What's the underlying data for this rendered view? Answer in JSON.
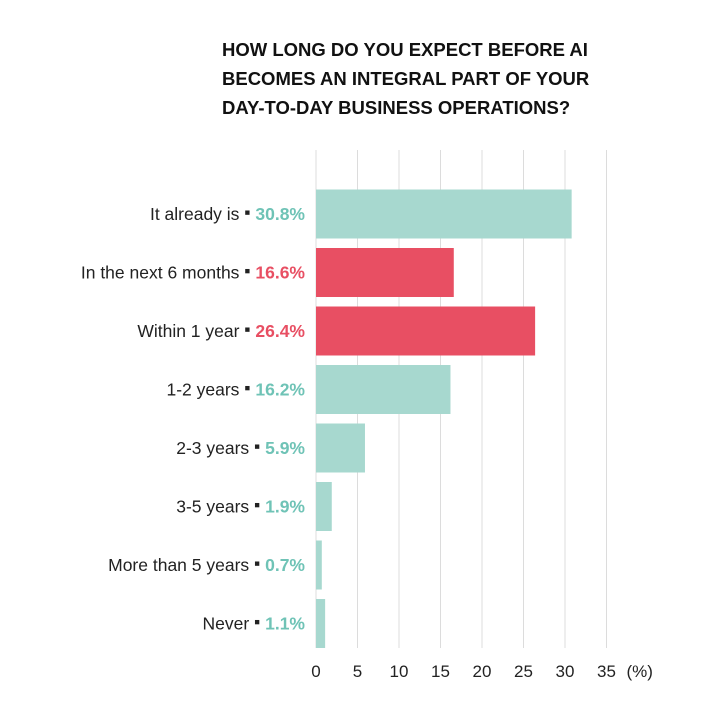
{
  "chart_data": {
    "type": "bar",
    "orientation": "horizontal",
    "title_lines": [
      "HOW LONG DO YOU EXPECT BEFORE AI",
      "BECOMES AN INTEGRAL PART OF YOUR",
      "DAY-TO-DAY BUSINESS OPERATIONS?"
    ],
    "categories": [
      "It already is",
      "In the next 6 months",
      "Within 1 year",
      "1-2 years",
      "2-3 years",
      "3-5 years",
      "More than 5 years",
      "Never"
    ],
    "value_labels": [
      "30.8%",
      "16.6%",
      "26.4%",
      "16.2%",
      "5.9%",
      "1.9%",
      "0.7%",
      "1.1%"
    ],
    "values": [
      30.8,
      16.6,
      26.4,
      16.2,
      5.9,
      1.9,
      0.7,
      1.1
    ],
    "bar_colors": [
      "#a7d8cf",
      "#e84f63",
      "#e84f63",
      "#a7d8cf",
      "#a7d8cf",
      "#a7d8cf",
      "#a7d8cf",
      "#a7d8cf"
    ],
    "label_colors": [
      "#6fc3b6",
      "#e84f63",
      "#e84f63",
      "#6fc3b6",
      "#6fc3b6",
      "#6fc3b6",
      "#6fc3b6",
      "#6fc3b6"
    ],
    "separator": "▪",
    "xticks": [
      "0",
      "5",
      "10",
      "15",
      "20",
      "25",
      "30",
      "35"
    ],
    "xunit": "(%)",
    "xlim": [
      0,
      35
    ],
    "grid": true
  }
}
